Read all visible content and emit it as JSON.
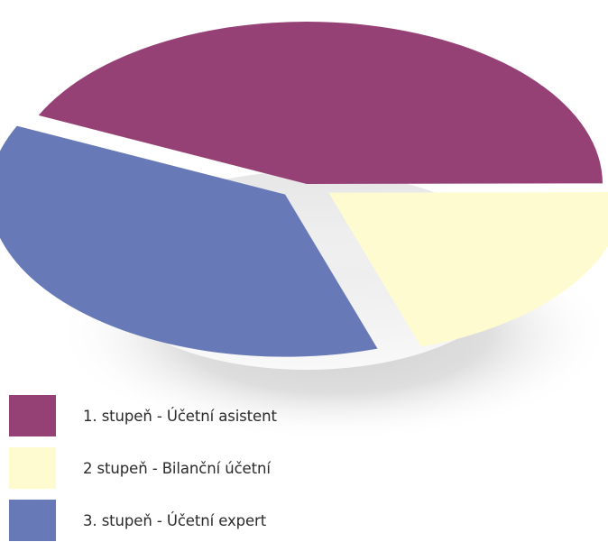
{
  "chart_data": {
    "type": "pie",
    "title": "",
    "slices": [
      {
        "label": "1. stupeň - Účetní asistent",
        "value": 43,
        "color": "#964175"
      },
      {
        "label": "2  stupeň - Bilanční účetní",
        "value": 20,
        "color": "#fffbd0"
      },
      {
        "label": "3. stupeň - Účetní expert",
        "value": 37,
        "color": "#6779b6"
      }
    ],
    "legend_position": "bottom-left",
    "style": "3d-exploded"
  }
}
